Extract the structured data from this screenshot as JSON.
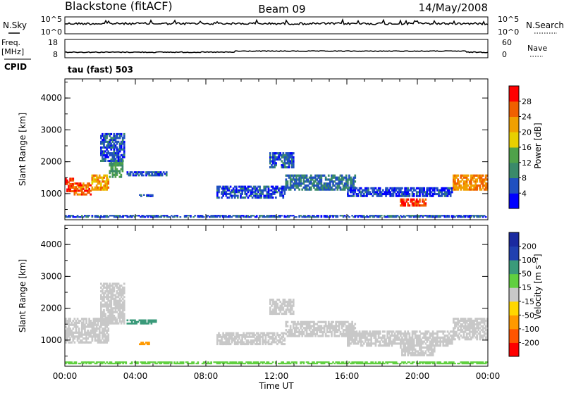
{
  "header": {
    "station": "Blackstone (fitACF)",
    "beam": "Beam 09",
    "date": "14/May/2008"
  },
  "strips": {
    "nsky_label": "N.Sky",
    "nsky_ticks": [
      "10^5",
      "10^0"
    ],
    "nsearch_label": "N.Search",
    "nsearch_ticks": [
      "10^5",
      "10^0"
    ],
    "freq_label_top": "Freq.",
    "freq_label_unit": "[MHz]",
    "freq_ticks": [
      "18",
      "8"
    ],
    "nave_label": "Nave",
    "nave_ticks": [
      "60",
      "0"
    ],
    "cpid_label": "CPID",
    "cpid_value": "tau (fast) 503"
  },
  "axes": {
    "ylabel": "Slant Range [km]",
    "yticks": [
      "4000",
      "3000",
      "2000",
      "1000"
    ],
    "xticks": [
      "00:00",
      "04:00",
      "08:00",
      "12:00",
      "16:00",
      "20:00",
      "00:00"
    ],
    "xlabel": "Time UT"
  },
  "colors": {
    "power": [
      "#0000ff",
      "#2050c0",
      "#3a8a6a",
      "#4fa24a",
      "#e8d000",
      "#f0a000",
      "#f06000",
      "#ff0000"
    ],
    "velocity": [
      "#ff0000",
      "#ff5500",
      "#ff9900",
      "#ffd700",
      "#c8c8c8",
      "#60d040",
      "#3a9a7a",
      "#2040b0"
    ]
  },
  "chart_data": [
    {
      "type": "heatmap",
      "panel": "power",
      "xlabel": "Time UT",
      "ylabel": "Slant Range [km]",
      "xlim_hours": [
        0,
        24
      ],
      "ylim_km": [
        180,
        4600
      ],
      "colorbar_label": "Power [dB]",
      "colorbar_ticks": [
        "28",
        "24",
        "20",
        "16",
        "12",
        "8",
        "4"
      ],
      "colorbar_range": [
        0,
        32
      ],
      "regions": [
        {
          "t": [
            0,
            0.5
          ],
          "r": [
            1050,
            1500
          ],
          "value": 28
        },
        {
          "t": [
            0.5,
            1.5
          ],
          "r": [
            950,
            1350
          ],
          "value": 26
        },
        {
          "t": [
            1.5,
            2.5
          ],
          "r": [
            1100,
            1600
          ],
          "value": 22
        },
        {
          "t": [
            2.5,
            3.3
          ],
          "r": [
            1500,
            2100
          ],
          "value": 12
        },
        {
          "t": [
            2.0,
            3.4
          ],
          "r": [
            2000,
            2900
          ],
          "value": 6
        },
        {
          "t": [
            3.5,
            5.8
          ],
          "r": [
            1550,
            1700
          ],
          "value": 6
        },
        {
          "t": [
            4.2,
            5.0
          ],
          "r": [
            900,
            980
          ],
          "value": 5
        },
        {
          "t": [
            8.6,
            12.5
          ],
          "r": [
            850,
            1250
          ],
          "value": 5
        },
        {
          "t": [
            11.6,
            13.0
          ],
          "r": [
            1800,
            2300
          ],
          "value": 6
        },
        {
          "t": [
            12.5,
            16.5
          ],
          "r": [
            1100,
            1600
          ],
          "value": 8
        },
        {
          "t": [
            16.0,
            22.0
          ],
          "r": [
            900,
            1200
          ],
          "value": 5
        },
        {
          "t": [
            19.0,
            20.5
          ],
          "r": [
            600,
            850
          ],
          "value": 28
        },
        {
          "t": [
            22.0,
            24.0
          ],
          "r": [
            1100,
            1600
          ],
          "value": 24
        },
        {
          "t": [
            0,
            24
          ],
          "r": [
            250,
            330
          ],
          "value": 6
        }
      ]
    },
    {
      "type": "heatmap",
      "panel": "velocity",
      "xlabel": "Time UT",
      "ylabel": "Slant Range [km]",
      "xlim_hours": [
        0,
        24
      ],
      "ylim_km": [
        180,
        4600
      ],
      "colorbar_label": "Velocity [m s⁻¹]",
      "colorbar_ticks": [
        "200",
        "100",
        "50",
        "15",
        "-15",
        "-50",
        "-100",
        "-200"
      ],
      "regions": [
        {
          "t": [
            0,
            2.5
          ],
          "r": [
            900,
            1700
          ],
          "value": 0
        },
        {
          "t": [
            2.0,
            3.4
          ],
          "r": [
            1500,
            2800
          ],
          "value": 0
        },
        {
          "t": [
            3.5,
            5.2
          ],
          "r": [
            1500,
            1650
          ],
          "value": 60
        },
        {
          "t": [
            4.2,
            4.9
          ],
          "r": [
            850,
            950
          ],
          "value": -80
        },
        {
          "t": [
            8.6,
            12.5
          ],
          "r": [
            850,
            1250
          ],
          "value": 0
        },
        {
          "t": [
            11.6,
            13.0
          ],
          "r": [
            1800,
            2300
          ],
          "value": 0
        },
        {
          "t": [
            12.5,
            16.5
          ],
          "r": [
            1100,
            1600
          ],
          "value": 0
        },
        {
          "t": [
            16.0,
            22.0
          ],
          "r": [
            800,
            1300
          ],
          "value": 0
        },
        {
          "t": [
            19.0,
            21.0
          ],
          "r": [
            500,
            800
          ],
          "value": 0
        },
        {
          "t": [
            22.0,
            24.0
          ],
          "r": [
            1000,
            1700
          ],
          "value": 0
        },
        {
          "t": [
            0,
            24
          ],
          "r": [
            250,
            330
          ],
          "value": 30
        }
      ]
    }
  ]
}
